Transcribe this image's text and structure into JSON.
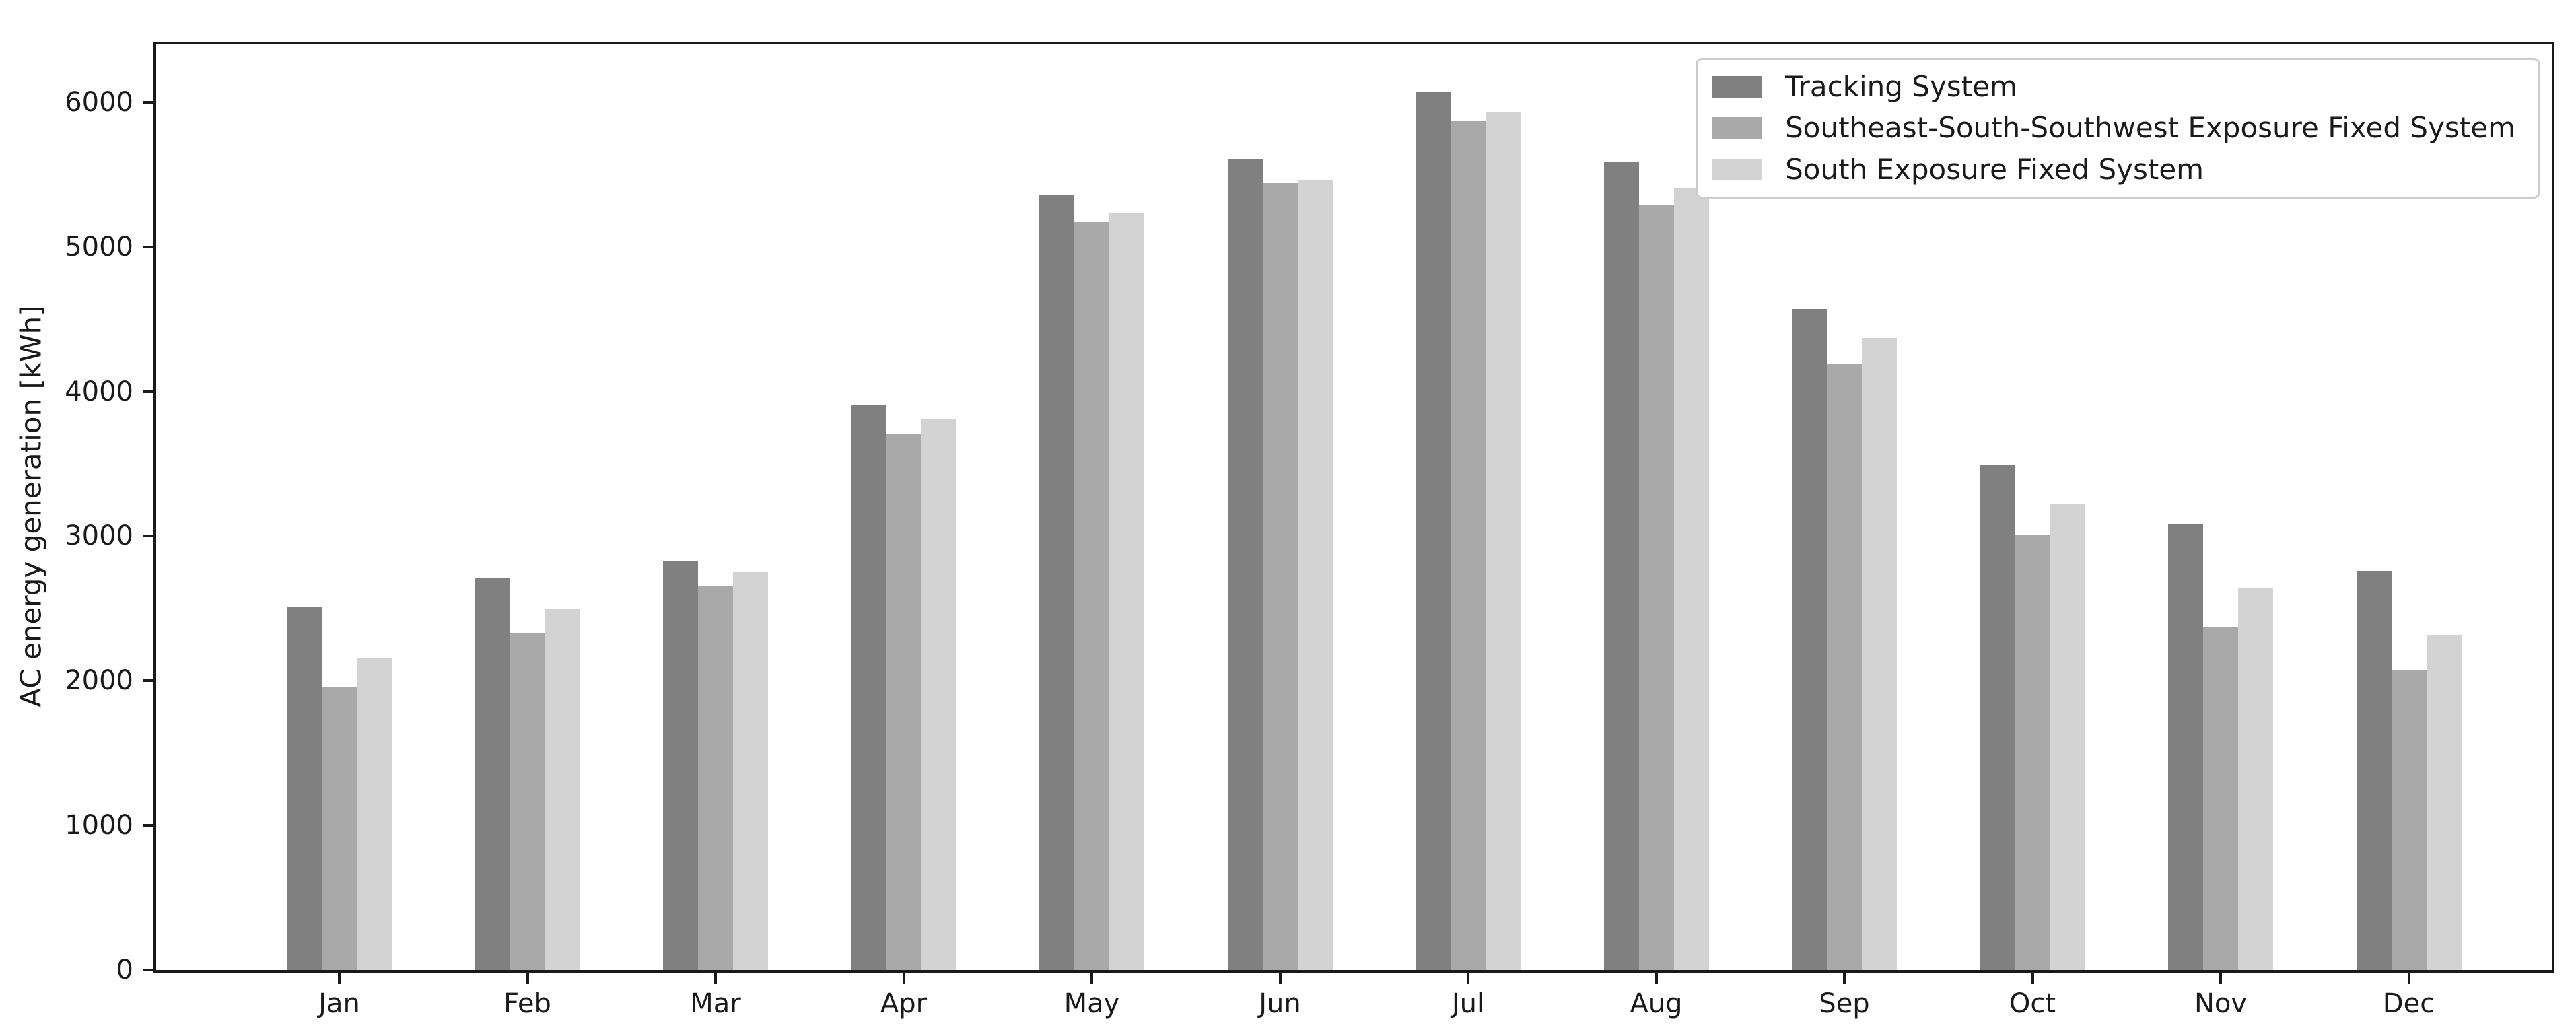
{
  "chart_data": {
    "type": "bar",
    "title": "",
    "xlabel": "",
    "ylabel": "AC energy generation [kWh]",
    "categories": [
      "Jan",
      "Feb",
      "Mar",
      "Apr",
      "May",
      "Jun",
      "Jul",
      "Aug",
      "Sep",
      "Oct",
      "Nov",
      "Dec"
    ],
    "series": [
      {
        "name": "Tracking System",
        "color": "#808080",
        "values": [
          2510,
          2710,
          2830,
          3910,
          5360,
          5610,
          6070,
          5590,
          4570,
          3490,
          3080,
          2760
        ]
      },
      {
        "name": "Southeast-South-Southwest Exposure Fixed System",
        "color": "#a9a9a9",
        "values": [
          1960,
          2330,
          2660,
          3710,
          5170,
          5440,
          5870,
          5290,
          4190,
          3010,
          2370,
          2070
        ]
      },
      {
        "name": "South Exposure Fixed System",
        "color": "#d3d3d3",
        "values": [
          2160,
          2500,
          2750,
          3810,
          5230,
          5460,
          5930,
          5410,
          4370,
          3220,
          2640,
          2320
        ]
      }
    ],
    "y_ticks": [
      0,
      1000,
      2000,
      3000,
      4000,
      5000,
      6000
    ],
    "ylim": [
      0,
      6400
    ],
    "grid": false,
    "legend_position": "upper right"
  }
}
